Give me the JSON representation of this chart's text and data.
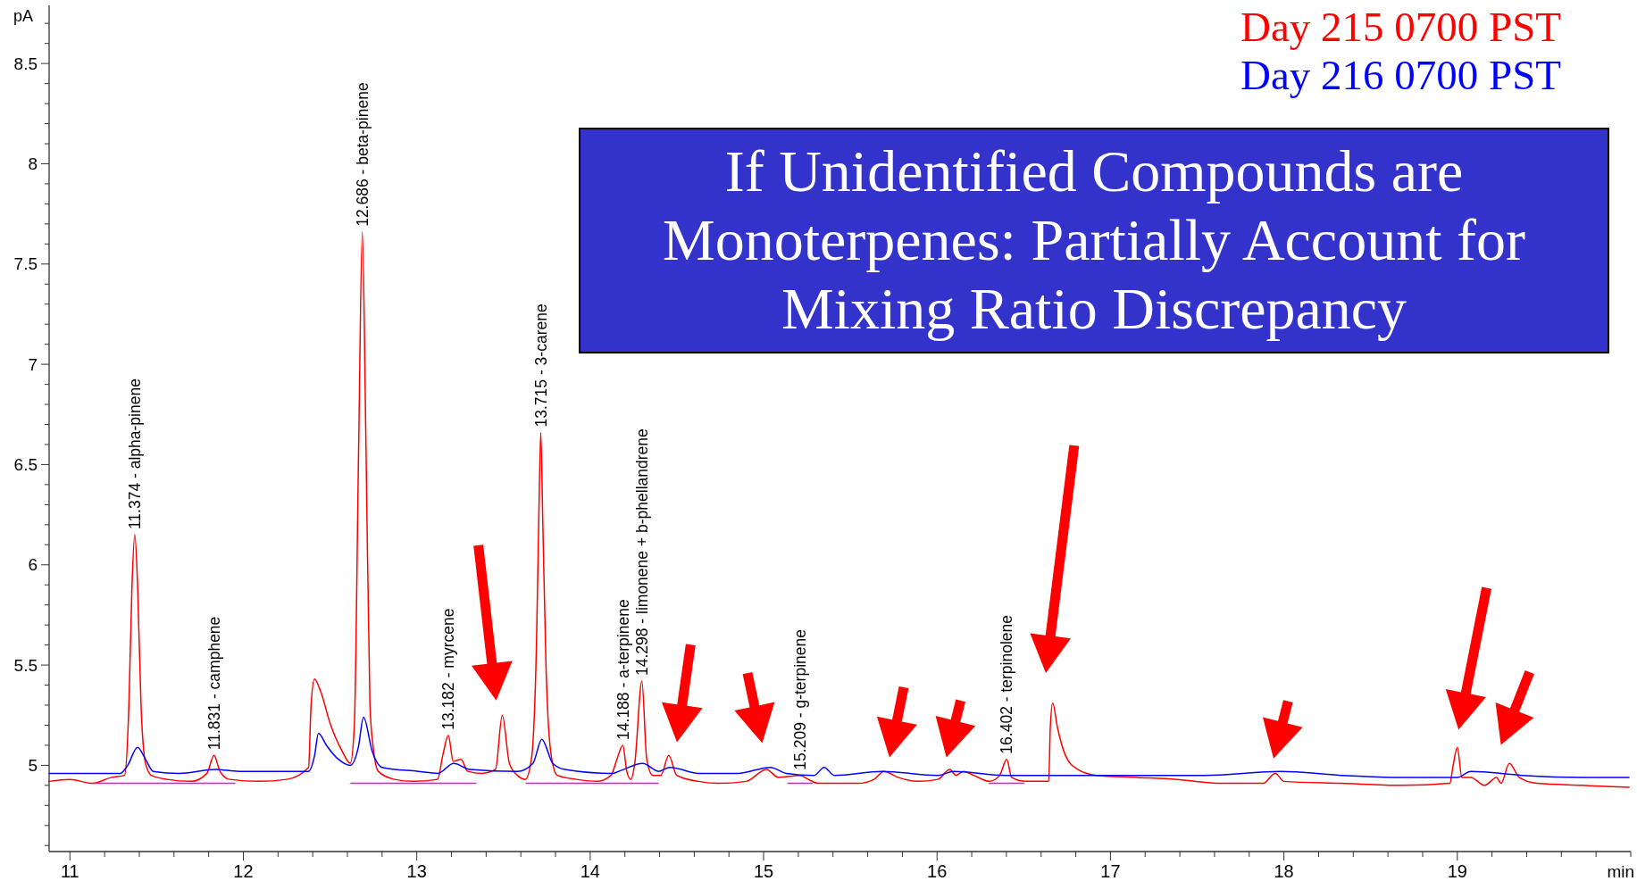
{
  "chart_data": {
    "type": "line",
    "title": "If Unidentified Compounds are Monoterpenes: Partially Account for Mixing Ratio Discrepancy",
    "xlabel": "min",
    "ylabel": "pA",
    "legend": "top right",
    "line_style": "solid",
    "xlim": [
      10.88,
      20
    ],
    "ylim": [
      4.57,
      8.79
    ],
    "xticks": [
      11,
      {
        "value": 11.2,
        "label": null
      },
      {
        "value": 11.4,
        "label": null
      },
      {
        "value": 11.6,
        "label": null
      },
      {
        "value": 11.8,
        "label": null
      },
      12,
      {
        "value": 12.2,
        "label": null
      },
      {
        "value": 12.4,
        "label": null
      },
      {
        "value": 12.6,
        "label": null
      },
      {
        "value": 12.8,
        "label": null
      },
      13,
      {
        "value": 13.2,
        "label": null
      },
      {
        "value": 13.4,
        "label": null
      },
      {
        "value": 13.6,
        "label": null
      },
      {
        "value": 13.8,
        "label": null
      },
      14,
      {
        "value": 14.2,
        "label": null
      },
      {
        "value": 14.4,
        "label": null
      },
      {
        "value": 14.6,
        "label": null
      },
      {
        "value": 14.8,
        "label": null
      },
      15,
      {
        "value": 15.2,
        "label": null
      },
      {
        "value": 15.4,
        "label": null
      },
      {
        "value": 15.6,
        "label": null
      },
      {
        "value": 15.8,
        "label": null
      },
      16,
      {
        "value": 16.2,
        "label": null
      },
      {
        "value": 16.4,
        "label": null
      },
      {
        "value": 16.6,
        "label": null
      },
      {
        "value": 16.8,
        "label": null
      },
      17,
      {
        "value": 17.2,
        "label": null
      },
      {
        "value": 17.4,
        "label": null
      },
      {
        "value": 17.6,
        "label": null
      },
      {
        "value": 17.8,
        "label": null
      },
      18,
      {
        "value": 18.2,
        "label": null
      },
      {
        "value": 18.4,
        "label": null
      },
      {
        "value": 18.6,
        "label": null
      },
      {
        "value": 18.8,
        "label": null
      },
      19,
      {
        "value": 19.2,
        "label": null
      },
      {
        "value": 19.4,
        "label": null
      },
      {
        "value": 19.6,
        "label": null
      },
      {
        "value": 19.8,
        "label": null
      },
      {
        "value": 20,
        "label": null
      }
    ],
    "yticks": [
      {
        "value": 4.6,
        "label": null
      },
      {
        "value": 4.7,
        "label": null
      },
      {
        "value": 4.8,
        "label": null
      },
      {
        "value": 4.9,
        "label": null
      },
      5,
      {
        "value": 5.1,
        "label": null
      },
      {
        "value": 5.2,
        "label": null
      },
      {
        "value": 5.3,
        "label": null
      },
      {
        "value": 5.4,
        "label": null
      },
      5.5,
      {
        "value": 5.6,
        "label": null
      },
      {
        "value": 5.7,
        "label": null
      },
      {
        "value": 5.8,
        "label": null
      },
      {
        "value": 5.9,
        "label": null
      },
      6,
      {
        "value": 6.1,
        "label": null
      },
      {
        "value": 6.2,
        "label": null
      },
      {
        "value": 6.3,
        "label": null
      },
      {
        "value": 6.4,
        "label": null
      },
      6.5,
      {
        "value": 6.6,
        "label": null
      },
      {
        "value": 6.7,
        "label": null
      },
      {
        "value": 6.8,
        "label": null
      },
      {
        "value": 6.9,
        "label": null
      },
      7,
      {
        "value": 7.1,
        "label": null
      },
      {
        "value": 7.2,
        "label": null
      },
      {
        "value": 7.3,
        "label": null
      },
      {
        "value": 7.4,
        "label": null
      },
      7.5,
      {
        "value": 7.6,
        "label": null
      },
      {
        "value": 7.7,
        "label": null
      },
      {
        "value": 7.8,
        "label": null
      },
      {
        "value": 7.9,
        "label": null
      },
      8,
      {
        "value": 8.1,
        "label": null
      },
      {
        "value": 8.2,
        "label": null
      },
      {
        "value": 8.3,
        "label": null
      },
      {
        "value": 8.4,
        "label": null
      },
      8.5,
      {
        "value": 8.6,
        "label": null
      },
      {
        "value": 8.7,
        "label": null
      }
    ],
    "annotations": [
      {
        "text": "11.374 - alpha-pinene",
        "x": 11.374,
        "y": 6.15
      },
      {
        "text": "11.831 - camphene",
        "x": 11.831,
        "y": 5.05
      },
      {
        "text": "12.686 - beta-pinene",
        "x": 12.686,
        "y": 7.66
      },
      {
        "text": "13.182 - myrcene",
        "x": 13.182,
        "y": 5.15
      },
      {
        "text": "13.715 - 3-carene",
        "x": 13.715,
        "y": 6.66
      },
      {
        "text": "14.188 - a-terpinene",
        "x": 14.188,
        "y": 5.1
      },
      {
        "text": "14.298 - limonene + b-phellandrene",
        "x": 14.298,
        "y": 5.42
      },
      {
        "text": "15.209 - g-terpinene",
        "x": 15.209,
        "y": 4.95
      },
      {
        "text": "16.402 - terpinolene",
        "x": 16.402,
        "y": 5.03
      }
    ],
    "series": [
      {
        "name": "Day 215 0700 PST",
        "color": "#ff0000",
        "x": [
          10.88,
          11.0,
          11.13,
          11.24,
          11.315,
          11.34,
          11.358,
          11.374,
          11.39,
          11.41,
          11.436,
          11.47,
          11.56,
          11.7,
          11.79,
          11.831,
          11.865,
          11.92,
          12.09,
          12.25,
          12.376,
          12.39,
          12.41,
          12.445,
          12.5,
          12.57,
          12.617,
          12.64,
          12.665,
          12.686,
          12.707,
          12.73,
          12.75,
          12.778,
          12.87,
          12.98,
          13.12,
          13.15,
          13.182,
          13.21,
          13.255,
          13.294,
          13.374,
          13.454,
          13.493,
          13.534,
          13.58,
          13.626,
          13.661,
          13.69,
          13.703,
          13.715,
          13.727,
          13.745,
          13.775,
          13.81,
          13.92,
          14.04,
          14.12,
          14.154,
          14.188,
          14.211,
          14.234,
          14.257,
          14.298,
          14.326,
          14.361,
          14.407,
          14.453,
          14.499,
          14.625,
          14.74,
          14.9,
          15.016,
          15.085,
          15.209,
          15.257,
          15.315,
          15.545,
          15.637,
          15.694,
          15.775,
          15.89,
          16.005,
          16.074,
          16.108,
          16.154,
          16.211,
          16.303,
          16.361,
          16.402,
          16.43,
          16.51,
          16.644,
          16.653,
          16.667,
          16.694,
          16.74,
          16.81,
          16.92,
          17.15,
          17.38,
          17.64,
          17.88,
          17.95,
          18.0,
          18.33,
          18.68,
          18.957,
          18.974,
          19.0,
          19.026,
          19.078,
          19.157,
          19.226,
          19.252,
          19.3,
          19.357,
          19.46,
          19.72,
          19.99
        ],
        "values": [
          4.92,
          4.93,
          4.91,
          4.94,
          4.95,
          5.3,
          5.9,
          6.15,
          5.9,
          5.3,
          5.01,
          4.95,
          4.93,
          4.92,
          4.96,
          5.05,
          4.97,
          4.93,
          4.92,
          4.93,
          4.99,
          5.29,
          5.43,
          5.37,
          5.21,
          5.07,
          5.01,
          5.2,
          6.6,
          7.66,
          6.6,
          5.3,
          5.08,
          4.97,
          4.93,
          4.92,
          4.93,
          5.05,
          5.15,
          5.02,
          5.03,
          4.97,
          4.96,
          4.98,
          5.25,
          5.01,
          4.95,
          4.93,
          5.03,
          5.6,
          6.2,
          6.66,
          6.2,
          5.5,
          5.05,
          4.95,
          4.93,
          4.92,
          4.95,
          5.03,
          5.1,
          4.97,
          4.93,
          5.01,
          5.42,
          5.03,
          4.95,
          4.95,
          5.05,
          4.95,
          4.92,
          4.91,
          4.92,
          4.98,
          4.94,
          4.95,
          4.93,
          4.91,
          4.91,
          4.93,
          4.97,
          4.94,
          4.92,
          4.93,
          4.98,
          4.95,
          4.97,
          4.95,
          4.92,
          4.95,
          5.03,
          4.94,
          4.92,
          4.92,
          5.19,
          5.31,
          5.19,
          5.05,
          4.98,
          4.95,
          4.94,
          4.93,
          4.91,
          4.91,
          4.96,
          4.92,
          4.91,
          4.9,
          4.91,
          4.99,
          5.09,
          4.94,
          4.94,
          4.9,
          4.94,
          4.91,
          5.01,
          4.94,
          4.91,
          4.9,
          4.89
        ]
      },
      {
        "name": "Day 216 0700 PST",
        "color": "#0000ff",
        "x": [
          10.88,
          11.0,
          11.29,
          11.333,
          11.39,
          11.436,
          11.48,
          11.63,
          11.84,
          11.975,
          12.2,
          12.376,
          12.411,
          12.433,
          12.479,
          12.548,
          12.617,
          12.663,
          12.693,
          12.743,
          12.8,
          13.007,
          13.122,
          13.213,
          13.305,
          13.58,
          13.67,
          13.721,
          13.784,
          13.853,
          14.131,
          14.166,
          14.303,
          14.395,
          14.46,
          14.625,
          14.85,
          15.039,
          15.131,
          15.292,
          15.349,
          15.407,
          15.683,
          16.005,
          16.097,
          16.395,
          16.694,
          17.154,
          17.54,
          17.983,
          18.33,
          18.678,
          19.0,
          19.078,
          19.374,
          19.722,
          19.99
        ],
        "values": [
          4.96,
          4.96,
          4.96,
          5.0,
          5.09,
          5.03,
          4.97,
          4.96,
          4.98,
          4.97,
          4.97,
          4.97,
          5.05,
          5.16,
          5.1,
          5.03,
          5.0,
          5.09,
          5.24,
          5.07,
          4.99,
          4.97,
          4.96,
          5.01,
          4.98,
          4.97,
          5.01,
          5.13,
          5.01,
          4.98,
          4.96,
          4.97,
          5.01,
          4.97,
          4.99,
          4.96,
          4.96,
          4.99,
          4.96,
          4.95,
          4.99,
          4.95,
          4.97,
          4.95,
          4.97,
          4.95,
          4.95,
          4.95,
          4.95,
          4.97,
          4.95,
          4.94,
          4.94,
          4.97,
          4.95,
          4.94,
          4.94
        ]
      },
      {
        "color": "#ff00ff",
        "x": [
          11.14,
          11.95,
          12.3,
          12.62,
          13.34,
          13.5,
          13.63,
          14.39,
          14.8,
          15.14,
          15.28,
          15.8,
          16.3,
          16.5
        ],
        "values": [
          4.91,
          4.91,
          null,
          4.91,
          4.91,
          null,
          4.91,
          4.91,
          null,
          4.91,
          4.91,
          null,
          4.91,
          4.91
        ]
      }
    ]
  }
}
